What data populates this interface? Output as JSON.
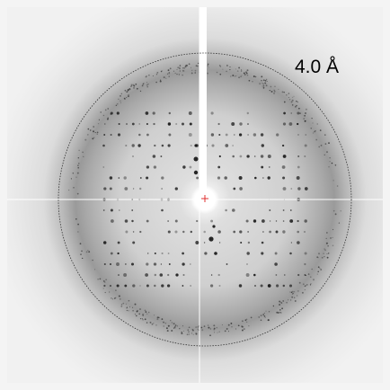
{
  "resolution_label": "4.0 Å"
}
